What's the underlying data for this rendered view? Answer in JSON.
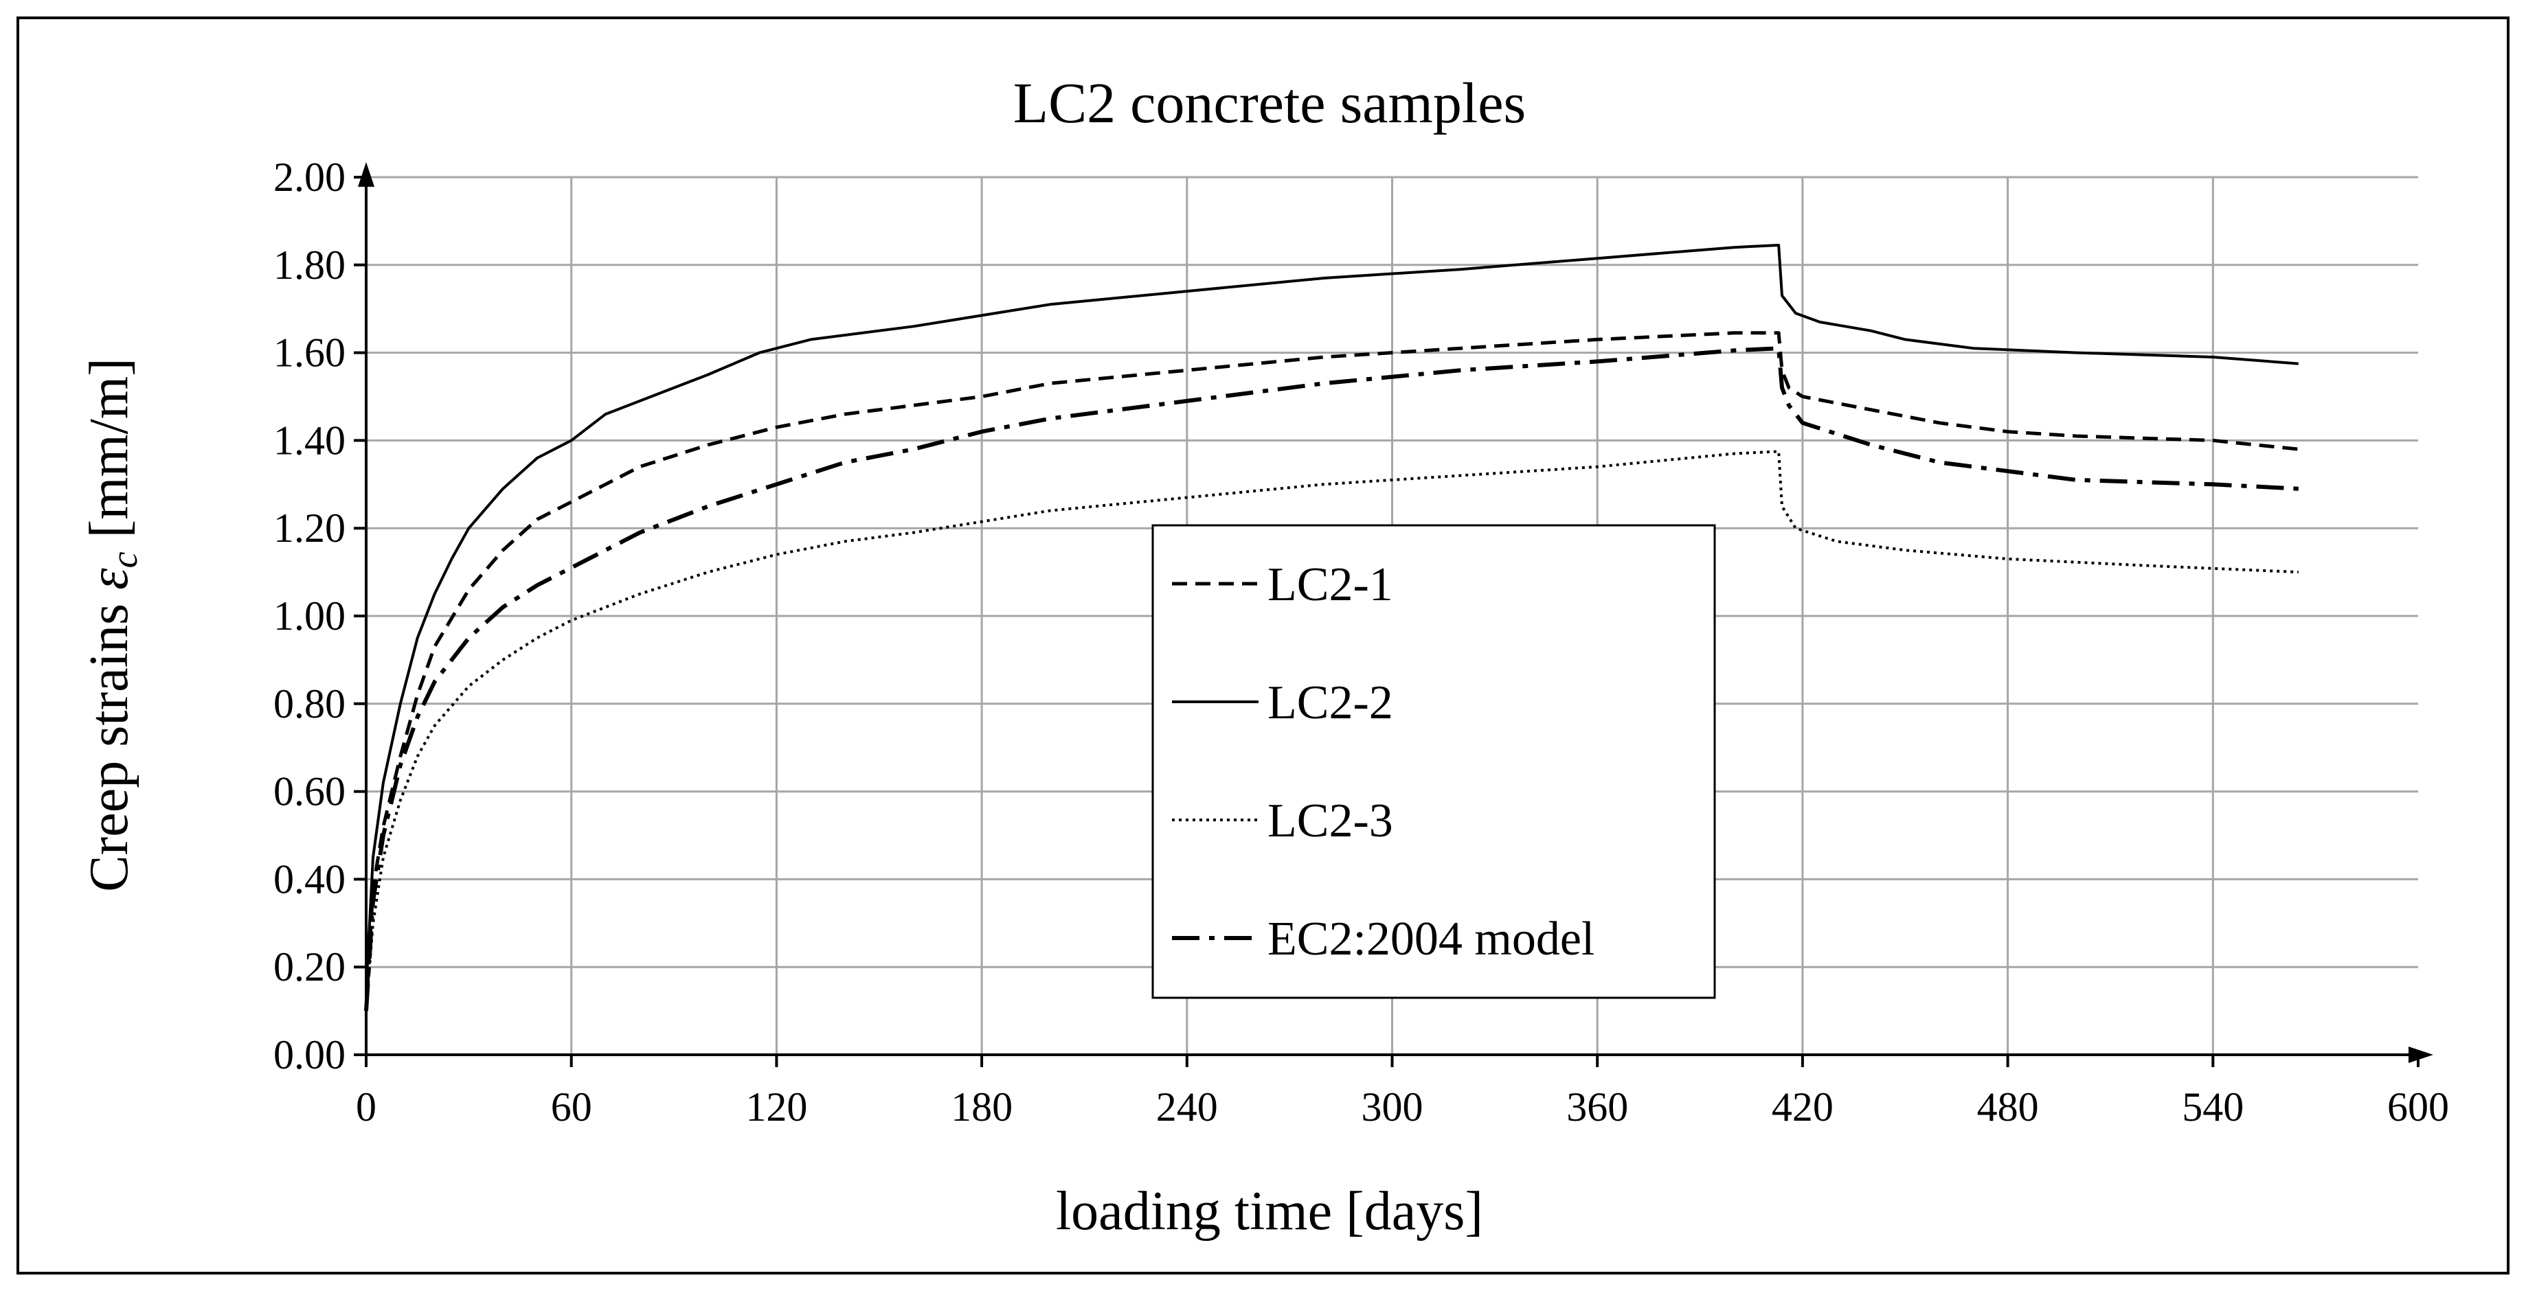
{
  "chart_data": {
    "type": "line",
    "title": "LC2 concrete samples",
    "xlabel": "loading time [days]",
    "ylabel_prefix": "Creep strains ",
    "ylabel_symbol": "ε",
    "ylabel_subscript": "c",
    "ylabel_suffix": " [mm/m]",
    "xlim": [
      0,
      600
    ],
    "ylim": [
      0,
      2.0
    ],
    "x_ticks": [
      "0",
      "60",
      "120",
      "180",
      "240",
      "300",
      "360",
      "420",
      "480",
      "540",
      "600"
    ],
    "y_ticks": [
      "0.00",
      "0.20",
      "0.40",
      "0.60",
      "0.80",
      "1.00",
      "1.20",
      "1.40",
      "1.60",
      "1.80",
      "2.00"
    ],
    "x_tick_values": [
      0,
      60,
      120,
      180,
      240,
      300,
      360,
      420,
      480,
      540,
      600
    ],
    "y_tick_values": [
      0,
      0.2,
      0.4,
      0.6,
      0.8,
      1.0,
      1.2,
      1.4,
      1.6,
      1.8,
      2.0
    ],
    "grid": true,
    "legend_position": "center-right inside plot",
    "series": [
      {
        "name": "LC2-1",
        "line_style": "dashed",
        "x": [
          0,
          2,
          5,
          10,
          15,
          20,
          30,
          40,
          50,
          60,
          70,
          80,
          100,
          120,
          140,
          160,
          180,
          200,
          240,
          280,
          320,
          360,
          400,
          413,
          414,
          416,
          420,
          440,
          460,
          480,
          500,
          540,
          565
        ],
        "y": [
          0.1,
          0.38,
          0.52,
          0.68,
          0.82,
          0.93,
          1.06,
          1.15,
          1.22,
          1.26,
          1.3,
          1.34,
          1.39,
          1.43,
          1.46,
          1.48,
          1.5,
          1.53,
          1.56,
          1.59,
          1.61,
          1.63,
          1.645,
          1.645,
          1.56,
          1.52,
          1.5,
          1.47,
          1.44,
          1.42,
          1.41,
          1.4,
          1.38
        ]
      },
      {
        "name": "LC2-2",
        "line_style": "solid",
        "x": [
          0,
          2,
          5,
          10,
          15,
          20,
          25,
          30,
          40,
          50,
          55,
          60,
          70,
          80,
          100,
          115,
          130,
          160,
          200,
          240,
          280,
          320,
          360,
          400,
          413,
          414,
          418,
          425,
          440,
          450,
          470,
          500,
          540,
          565
        ],
        "y": [
          0.15,
          0.45,
          0.62,
          0.8,
          0.95,
          1.05,
          1.13,
          1.2,
          1.29,
          1.36,
          1.38,
          1.4,
          1.46,
          1.49,
          1.55,
          1.6,
          1.63,
          1.66,
          1.71,
          1.74,
          1.77,
          1.79,
          1.815,
          1.84,
          1.845,
          1.73,
          1.69,
          1.67,
          1.65,
          1.63,
          1.61,
          1.6,
          1.59,
          1.575
        ]
      },
      {
        "name": "LC2-3",
        "line_style": "dotted",
        "x": [
          0,
          2,
          5,
          10,
          15,
          20,
          30,
          40,
          50,
          60,
          80,
          100,
          120,
          140,
          160,
          200,
          240,
          280,
          320,
          360,
          400,
          413,
          414,
          418,
          430,
          450,
          480,
          520,
          565
        ],
        "y": [
          0.1,
          0.3,
          0.45,
          0.58,
          0.68,
          0.75,
          0.84,
          0.9,
          0.95,
          0.99,
          1.05,
          1.1,
          1.14,
          1.17,
          1.19,
          1.24,
          1.27,
          1.3,
          1.32,
          1.34,
          1.37,
          1.375,
          1.25,
          1.2,
          1.17,
          1.15,
          1.13,
          1.115,
          1.1
        ]
      },
      {
        "name": "EC2:2004 model",
        "line_style": "dash-dot",
        "x": [
          0,
          2,
          5,
          10,
          15,
          20,
          30,
          40,
          50,
          60,
          80,
          100,
          120,
          140,
          160,
          180,
          200,
          240,
          280,
          320,
          360,
          400,
          413,
          414,
          416,
          420,
          440,
          460,
          480,
          500,
          540,
          565
        ],
        "y": [
          0.1,
          0.35,
          0.5,
          0.66,
          0.77,
          0.85,
          0.95,
          1.02,
          1.07,
          1.11,
          1.19,
          1.25,
          1.3,
          1.35,
          1.38,
          1.42,
          1.45,
          1.49,
          1.53,
          1.56,
          1.58,
          1.605,
          1.61,
          1.52,
          1.48,
          1.44,
          1.39,
          1.35,
          1.33,
          1.31,
          1.3,
          1.29
        ]
      }
    ]
  }
}
